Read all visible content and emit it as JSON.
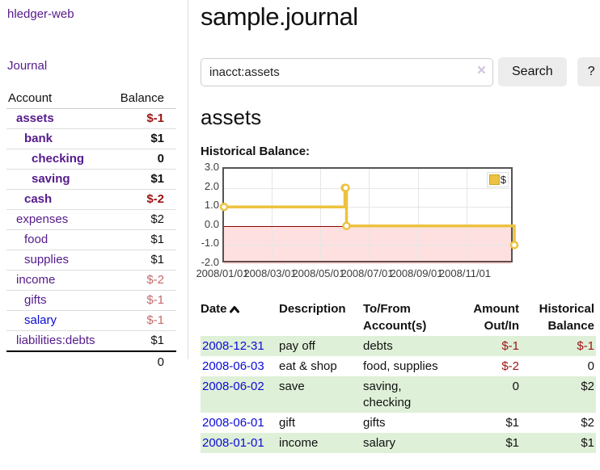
{
  "app": {
    "brand": "hledger-web",
    "nav": {
      "journal": "Journal"
    }
  },
  "sidebar": {
    "header": {
      "account": "Account",
      "balance": "Balance"
    },
    "accounts": [
      {
        "name": "assets",
        "balance": "$-1"
      },
      {
        "name": "bank",
        "balance": "$1"
      },
      {
        "name": "checking",
        "balance": "0"
      },
      {
        "name": "saving",
        "balance": "$1"
      },
      {
        "name": "cash",
        "balance": "$-2"
      },
      {
        "name": "expenses",
        "balance": "$2"
      },
      {
        "name": "food",
        "balance": "$1"
      },
      {
        "name": "supplies",
        "balance": "$1"
      },
      {
        "name": "income",
        "balance": "$-2"
      },
      {
        "name": "gifts",
        "balance": "$-1"
      },
      {
        "name": "salary",
        "balance": "$-1"
      },
      {
        "name": "liabilities:debts",
        "balance": "$1"
      }
    ],
    "total": "0"
  },
  "main": {
    "title": "sample.journal",
    "search": {
      "value": "inacct:assets",
      "clear_icon": "×",
      "button": "Search",
      "help": "?"
    },
    "section_title": "assets",
    "chart_label": "Historical Balance:"
  },
  "chart_data": {
    "type": "line",
    "step": true,
    "title": "Historical Balance:",
    "series": [
      {
        "name": "$",
        "color": "#edc240",
        "points": [
          [
            "2008-01-01",
            1
          ],
          [
            "2008-06-01",
            2
          ],
          [
            "2008-06-02",
            2
          ],
          [
            "2008-06-03",
            0
          ],
          [
            "2008-12-31",
            -1
          ]
        ]
      }
    ],
    "x_range": [
      "2008-01-01",
      "2008-12-31"
    ],
    "ylim": [
      -2,
      3
    ],
    "y_ticks": [
      "3.0",
      "2.0",
      "1.0",
      "0.0",
      "-1.0",
      "-2.0"
    ],
    "x_ticks": [
      "2008/01/01",
      "2008/03/01",
      "2008/05/01",
      "2008/07/01",
      "2008/09/01",
      "2008/11/01"
    ],
    "grid": true,
    "legend_position": "top-right",
    "zero_line_color": "#8b0000",
    "negative_region_color": "rgba(255,0,0,0.12)"
  },
  "register": {
    "headers": {
      "date": "Date",
      "description": "Description",
      "accounts": "To/From Account(s)",
      "amount": "Amount Out/In",
      "balance": "Historical Balance"
    },
    "rows": [
      {
        "date": "2008-12-31",
        "description": "pay off",
        "accounts": "debts",
        "amount": "$-1",
        "balance": "$-1"
      },
      {
        "date": "2008-06-03",
        "description": "eat & shop",
        "accounts": "food, supplies",
        "amount": "$-2",
        "balance": "0"
      },
      {
        "date": "2008-06-02",
        "description": "save",
        "accounts": "saving, checking",
        "amount": "0",
        "balance": "$2"
      },
      {
        "date": "2008-06-01",
        "description": "gift",
        "accounts": "gifts",
        "amount": "$1",
        "balance": "$2"
      },
      {
        "date": "2008-01-01",
        "description": "income",
        "accounts": "salary",
        "amount": "$1",
        "balance": "$1"
      }
    ]
  },
  "colors": {
    "link_purple": "#551A8B",
    "link_blue": "#0b0bd6",
    "negative_strong": "#9d1313",
    "negative_soft": "#c46a6a",
    "row_stripe_green": "#dff0d8",
    "chart_gold": "#edc240",
    "zero_line": "#8b0000",
    "plot_border": "#545454"
  }
}
